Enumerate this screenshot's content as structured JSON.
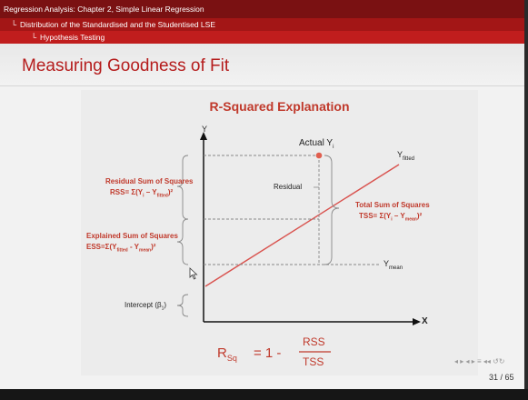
{
  "header": {
    "chapter": "Regression Analysis: Chapter 2, Simple Linear Regression",
    "section": "Distribution of the Standardised and the Studentised LSE",
    "subsection": "Hypothesis Testing"
  },
  "slide": {
    "title": "Measuring Goodness of Fit"
  },
  "diagram": {
    "title": "R-Squared Explanation",
    "y_axis_label": "Y",
    "x_axis_label": "X",
    "actual_label": "Actual Y",
    "actual_sub": "i",
    "fitted_label": "Y",
    "fitted_sub": "fitted",
    "mean_label": "Y",
    "mean_sub": "mean",
    "residual_label": "Residual",
    "rss_title": "Residual Sum of Squares",
    "rss_formula": "RSS= Σ(Yᵢ – Yₑᵢₜₜₑd)²",
    "rss_formula_main": "RSS= Σ(Y",
    "rss_formula_sub1": "i",
    "rss_formula_mid": " – Y",
    "rss_formula_sub2": "fitted",
    "rss_formula_end": ")²",
    "ess_title": "Explained Sum of Squares",
    "ess_formula_main": "ESS=Σ(Y",
    "ess_formula_sub1": "fitted",
    "ess_formula_mid": " - Y",
    "ess_formula_sub2": "mean",
    "ess_formula_end": ")²",
    "tss_title": "Total Sum of Squares",
    "tss_formula_main": "TSS= Σ(Y",
    "tss_formula_sub1": "i",
    "tss_formula_mid": " – Y",
    "tss_formula_sub2": "mean",
    "tss_formula_end": ")²",
    "intercept_label": "Intercept (β",
    "intercept_sub": "1",
    "intercept_end": ")",
    "formula_left": "R",
    "formula_left_sub": "Sq",
    "formula_eq": "= 1 -",
    "formula_num": "RSS",
    "formula_den": "TSS"
  },
  "footer": {
    "page": "31 / 65"
  },
  "colors": {
    "header_dark": "#7a1112",
    "accent": "#c0392b"
  }
}
